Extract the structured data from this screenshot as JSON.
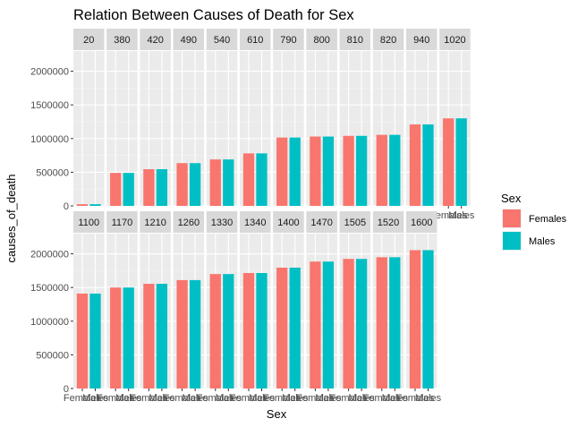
{
  "chart_data": {
    "type": "bar",
    "title": "Relation Between Causes of Death for Sex",
    "xlabel": "Sex",
    "ylabel": "causes_of_death",
    "categories": [
      "Females",
      "Males"
    ],
    "ylim": [
      0,
      2300000
    ],
    "yticks": [
      0,
      500000,
      1000000,
      1500000,
      2000000
    ],
    "ytick_labels": [
      "0",
      "500000",
      "1000000",
      "1500000",
      "2000000"
    ],
    "grid": true,
    "legend": {
      "title": "Sex",
      "position": "right",
      "entries": [
        {
          "label": "Females",
          "color": "#F8766D"
        },
        {
          "label": "Males",
          "color": "#00BFC4"
        }
      ]
    },
    "panels": [
      {
        "label": "20",
        "values": [
          25000,
          25000
        ]
      },
      {
        "label": "380",
        "values": [
          490000,
          490000
        ]
      },
      {
        "label": "420",
        "values": [
          545000,
          545000
        ]
      },
      {
        "label": "490",
        "values": [
          635000,
          635000
        ]
      },
      {
        "label": "540",
        "values": [
          690000,
          690000
        ]
      },
      {
        "label": "610",
        "values": [
          780000,
          780000
        ]
      },
      {
        "label": "790",
        "values": [
          1015000,
          1015000
        ]
      },
      {
        "label": "800",
        "values": [
          1030000,
          1030000
        ]
      },
      {
        "label": "810",
        "values": [
          1040000,
          1040000
        ]
      },
      {
        "label": "820",
        "values": [
          1055000,
          1055000
        ]
      },
      {
        "label": "940",
        "values": [
          1210000,
          1210000
        ]
      },
      {
        "label": "1020",
        "values": [
          1300000,
          1300000
        ]
      },
      {
        "label": "1100",
        "values": [
          1410000,
          1410000
        ]
      },
      {
        "label": "1170",
        "values": [
          1500000,
          1500000
        ]
      },
      {
        "label": "1210",
        "values": [
          1555000,
          1555000
        ]
      },
      {
        "label": "1260",
        "values": [
          1610000,
          1610000
        ]
      },
      {
        "label": "1330",
        "values": [
          1700000,
          1700000
        ]
      },
      {
        "label": "1340",
        "values": [
          1715000,
          1715000
        ]
      },
      {
        "label": "1400",
        "values": [
          1795000,
          1795000
        ]
      },
      {
        "label": "1470",
        "values": [
          1885000,
          1885000
        ]
      },
      {
        "label": "1505",
        "values": [
          1925000,
          1925000
        ]
      },
      {
        "label": "1520",
        "values": [
          1950000,
          1950000
        ]
      },
      {
        "label": "1600",
        "values": [
          2055000,
          2055000
        ]
      }
    ]
  }
}
